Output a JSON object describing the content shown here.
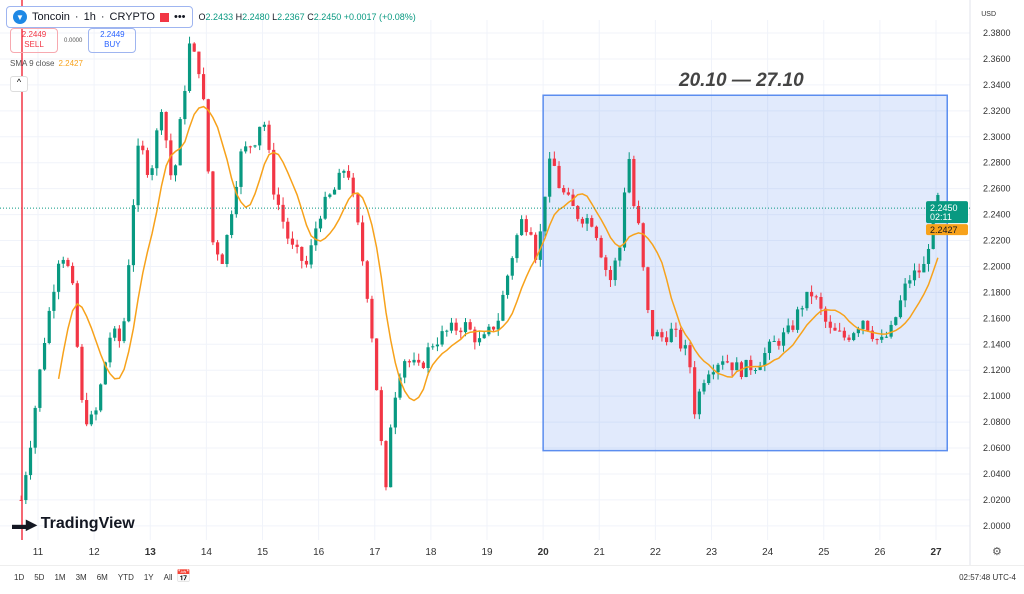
{
  "header": {
    "symbol": "Toncoin",
    "interval": "1h",
    "exchange": "CRYPTO",
    "more": "•••",
    "ohlc": {
      "o_label": "O",
      "o": "2.2433",
      "h_label": "H",
      "h": "2.2480",
      "l_label": "L",
      "l": "2.2367",
      "c_label": "C",
      "c": "2.2450",
      "change": "+0.0017 (+0.08%)"
    }
  },
  "trade": {
    "sell_price": "2.2449",
    "sell_label": "SELL",
    "spread": "0.0000",
    "buy_price": "2.2449",
    "buy_label": "BUY"
  },
  "indicator": {
    "label": "SMA 9 close",
    "value": "2.2427"
  },
  "annotation": "20.10 — 27.10",
  "currency": "USD",
  "price_tag": {
    "price": "2.2450",
    "countdown": "02:11",
    "sma": "2.2427"
  },
  "branding": "TradingView",
  "ranges": [
    "1D",
    "5D",
    "1M",
    "3M",
    "6M",
    "YTD",
    "1Y",
    "All"
  ],
  "clock": "02:57:48 UTC-4",
  "colors": {
    "up": "#089981",
    "down": "#f23645",
    "sma": "#f7a21b",
    "highlight": "#5b8def"
  },
  "chart_data": {
    "type": "candlestick",
    "ylim": [
      2.0,
      2.38
    ],
    "yticks": [
      "2.0000",
      "2.0200",
      "2.0400",
      "2.0600",
      "2.0800",
      "2.1000",
      "2.1200",
      "2.1400",
      "2.1600",
      "2.1800",
      "2.2000",
      "2.2200",
      "2.2400",
      "2.2600",
      "2.2800",
      "2.3000",
      "2.3200",
      "2.3400",
      "2.3600",
      "2.3800"
    ],
    "xticks": [
      {
        "day": 11,
        "label": "11"
      },
      {
        "day": 12,
        "label": "12"
      },
      {
        "day": 13,
        "label": "13",
        "bold": true
      },
      {
        "day": 14,
        "label": "14"
      },
      {
        "day": 15,
        "label": "15"
      },
      {
        "day": 16,
        "label": "16"
      },
      {
        "day": 17,
        "label": "17"
      },
      {
        "day": 18,
        "label": "18"
      },
      {
        "day": 19,
        "label": "19"
      },
      {
        "day": 20,
        "label": "20",
        "bold": true
      },
      {
        "day": 21,
        "label": "21"
      },
      {
        "day": 22,
        "label": "22"
      },
      {
        "day": 23,
        "label": "23"
      },
      {
        "day": 24,
        "label": "24"
      },
      {
        "day": 25,
        "label": "25"
      },
      {
        "day": 26,
        "label": "26"
      },
      {
        "day": 27,
        "label": "27",
        "bold": true
      }
    ],
    "highlight_range": {
      "from_day": 20.0,
      "to_day": 27.2,
      "from_price": 2.058,
      "to_price": 2.332
    },
    "last_price": 2.245,
    "sma_period": 9,
    "price_path": [
      [
        10.7,
        2.02
      ],
      [
        10.85,
        2.06
      ],
      [
        11.1,
        2.14
      ],
      [
        11.4,
        2.215
      ],
      [
        11.6,
        2.19
      ],
      [
        11.8,
        2.085
      ],
      [
        12.0,
        2.08
      ],
      [
        12.3,
        2.15
      ],
      [
        12.5,
        2.14
      ],
      [
        12.7,
        2.25
      ],
      [
        12.8,
        2.295
      ],
      [
        13.0,
        2.27
      ],
      [
        13.2,
        2.325
      ],
      [
        13.4,
        2.26
      ],
      [
        13.7,
        2.37
      ],
      [
        13.9,
        2.35
      ],
      [
        14.0,
        2.3
      ],
      [
        14.1,
        2.22
      ],
      [
        14.3,
        2.205
      ],
      [
        14.6,
        2.285
      ],
      [
        14.9,
        2.3
      ],
      [
        15.0,
        2.32
      ],
      [
        15.2,
        2.26
      ],
      [
        15.5,
        2.215
      ],
      [
        15.8,
        2.2
      ],
      [
        16.0,
        2.24
      ],
      [
        16.3,
        2.26
      ],
      [
        16.5,
        2.28
      ],
      [
        16.7,
        2.23
      ],
      [
        16.9,
        2.17
      ],
      [
        17.0,
        2.125
      ],
      [
        17.1,
        2.07
      ],
      [
        17.2,
        2.025
      ],
      [
        17.3,
        2.09
      ],
      [
        17.5,
        2.13
      ],
      [
        17.8,
        2.12
      ],
      [
        18.0,
        2.14
      ],
      [
        18.3,
        2.15
      ],
      [
        18.6,
        2.155
      ],
      [
        18.9,
        2.14
      ],
      [
        19.2,
        2.16
      ],
      [
        19.4,
        2.2
      ],
      [
        19.6,
        2.235
      ],
      [
        19.8,
        2.23
      ],
      [
        19.9,
        2.2
      ],
      [
        20.0,
        2.25
      ],
      [
        20.15,
        2.285
      ],
      [
        20.3,
        2.26
      ],
      [
        20.6,
        2.24
      ],
      [
        20.9,
        2.235
      ],
      [
        21.1,
        2.2
      ],
      [
        21.2,
        2.19
      ],
      [
        21.4,
        2.22
      ],
      [
        21.5,
        2.3
      ],
      [
        21.6,
        2.25
      ],
      [
        21.7,
        2.23
      ],
      [
        21.9,
        2.15
      ],
      [
        22.1,
        2.145
      ],
      [
        22.3,
        2.15
      ],
      [
        22.6,
        2.13
      ],
      [
        22.7,
        2.09
      ],
      [
        22.9,
        2.12
      ],
      [
        23.2,
        2.13
      ],
      [
        23.5,
        2.12
      ],
      [
        23.8,
        2.125
      ],
      [
        24.1,
        2.14
      ],
      [
        24.4,
        2.15
      ],
      [
        24.6,
        2.17
      ],
      [
        24.8,
        2.18
      ],
      [
        25.1,
        2.15
      ],
      [
        25.4,
        2.145
      ],
      [
        25.7,
        2.16
      ],
      [
        26.0,
        2.14
      ],
      [
        26.2,
        2.15
      ],
      [
        26.5,
        2.19
      ],
      [
        26.8,
        2.2
      ],
      [
        27.0,
        2.255
      ],
      [
        27.1,
        2.245
      ]
    ]
  }
}
